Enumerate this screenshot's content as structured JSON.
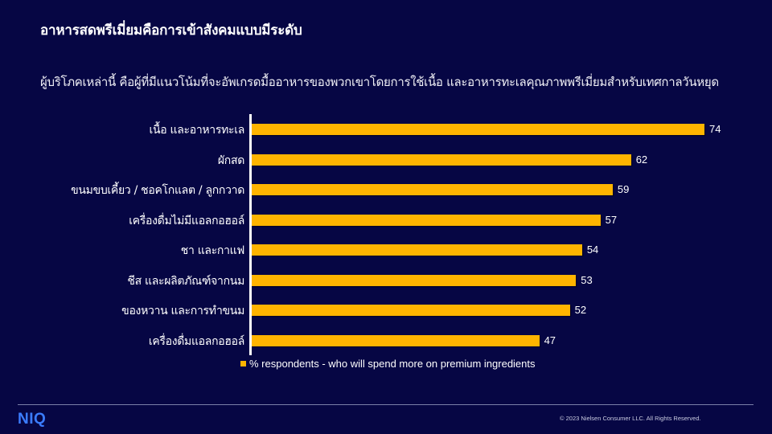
{
  "header": {
    "title": "อาหารสดพรีเมี่ยมคือการเข้าสังคมแบบมีระดับ",
    "subtitle": "ผู้บริโภคเหล่านี้ คือผู้ที่มีแนวโน้มที่จะอัพเกรดมื้ออาหารของพวกเขาโดยการใช้เนื้อ และอาหารทะเลคุณภาพพรีเมี่ยมสำหรับเทศกาลวันหยุด"
  },
  "colors": {
    "background": "#060644",
    "bar": "#FFB400",
    "logo": "#3b7cff"
  },
  "chart_data": {
    "type": "bar",
    "orientation": "horizontal",
    "title": "อาหารสดพรีเมี่ยมคือการเข้าสังคมแบบมีระดับ",
    "subtitle": "ผู้บริโภคเหล่านี้ คือผู้ที่มีแนวโน้มที่จะอัพเกรดมื้ออาหารของพวกเขาโดยการใช้เนื้อ และอาหารทะเลคุณภาพพรีเมี่ยมสำหรับเทศกาลวันหยุด",
    "categories": [
      "เนื้อ และอาหารทะเล",
      "ผักสด",
      "ขนมขบเคี้ยว / ชอคโกแลต / ลูกกวาด",
      "เครื่องดื่มไม่มีแอลกอฮอล์",
      "ชา และกาแฟ",
      "ชีส และผลิตภัณฑ์จากนม",
      "ของหวาน และการทำขนม",
      "เครื่องดื่มแอลกอฮอล์"
    ],
    "series": [
      {
        "name": "% respondents - who will spend more on premium ingredients",
        "values": [
          74,
          62,
          59,
          57,
          54,
          53,
          52,
          47
        ]
      }
    ],
    "xlabel": "",
    "ylabel": "",
    "xlim": [
      0,
      74
    ],
    "grid": false,
    "data_labels": true,
    "legend_position": "bottom"
  },
  "chart": {
    "rows": [
      {
        "label": "เนื้อ และอาหารทะเล",
        "value": "74"
      },
      {
        "label": "ผักสด",
        "value": "62"
      },
      {
        "label": "ขนมขบเคี้ยว / ชอคโกแลต / ลูกกวาด",
        "value": "59"
      },
      {
        "label": "เครื่องดื่มไม่มีแอลกอฮอล์",
        "value": "57"
      },
      {
        "label": "ชา และกาแฟ",
        "value": "54"
      },
      {
        "label": "ชีส และผลิตภัณฑ์จากนม",
        "value": "53"
      },
      {
        "label": "ของหวาน และการทำขนม",
        "value": "52"
      },
      {
        "label": "เครื่องดื่มแอลกอฮอล์",
        "value": "47"
      }
    ],
    "legend": "% respondents - who will spend more on premium ingredients"
  },
  "footer": {
    "logo": "NIQ",
    "copyright": "© 2023 Nielsen Consumer LLC. All Rights Reserved."
  }
}
